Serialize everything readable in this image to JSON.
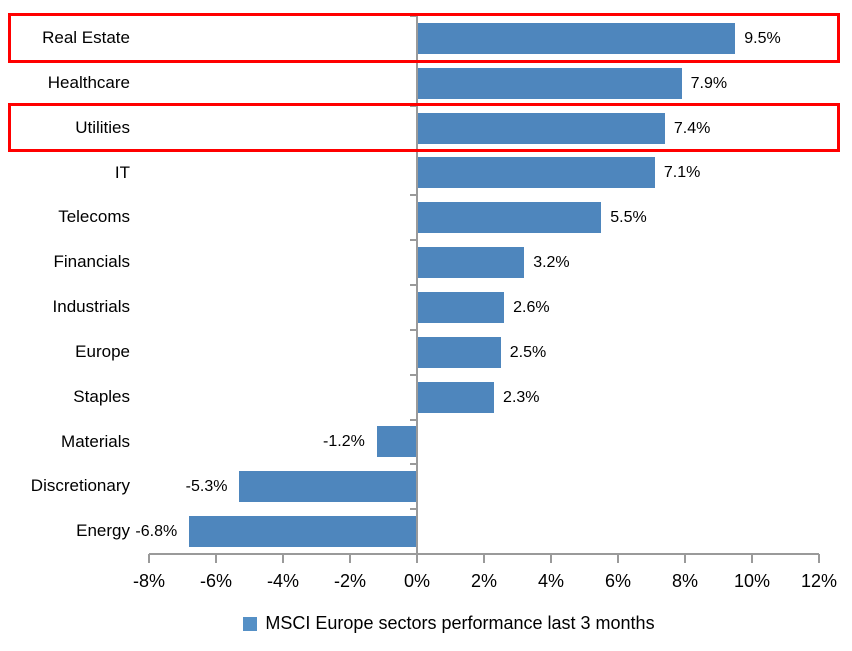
{
  "chart_data": {
    "type": "bar",
    "orientation": "horizontal",
    "title": "",
    "categories": [
      "Real Estate",
      "Healthcare",
      "Utilities",
      "IT",
      "Telecoms",
      "Financials",
      "Industrials",
      "Europe",
      "Staples",
      "Materials",
      "Discretionary",
      "Energy"
    ],
    "values": [
      9.5,
      7.9,
      7.4,
      7.1,
      5.5,
      3.2,
      2.6,
      2.5,
      2.3,
      -1.2,
      -5.3,
      -6.8
    ],
    "value_labels": [
      "9.5%",
      "7.9%",
      "7.4%",
      "7.1%",
      "5.5%",
      "3.2%",
      "2.6%",
      "2.5%",
      "2.3%",
      "-1.2%",
      "-5.3%",
      "-6.8%"
    ],
    "series_name": "MSCI Europe sectors performance last 3 months",
    "xlabel": "",
    "ylabel": "",
    "xlim": [
      -8,
      12
    ],
    "x_tick_step": 2,
    "x_tick_labels": [
      "-8%",
      "-6%",
      "-4%",
      "-2%",
      "0%",
      "2%",
      "4%",
      "6%",
      "8%",
      "10%",
      "12%"
    ],
    "grid": false,
    "legend_position": "bottom-center",
    "highlighted_categories": [
      "Real Estate",
      "Utilities"
    ],
    "annotations": "red rectangles outline the Real Estate and Utilities rows"
  },
  "legend": {
    "label": "MSCI Europe sectors performance last 3 months"
  },
  "colors": {
    "bar": "#4E86BD",
    "legend_swatch": "#5590C6",
    "highlight_box": "#FF0000",
    "axis": "#9A9A9A",
    "text": "#000000",
    "background": "#FFFFFF"
  }
}
